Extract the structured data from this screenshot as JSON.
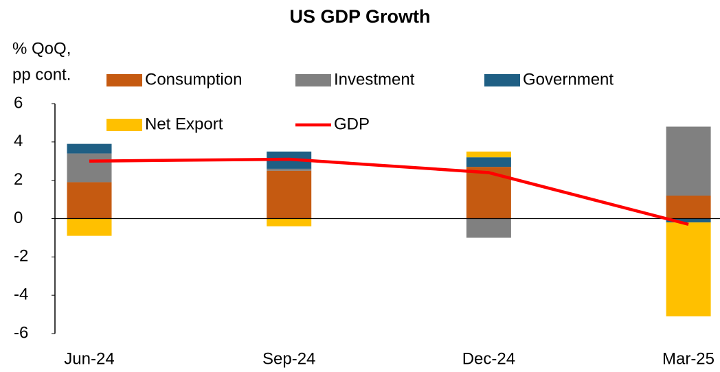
{
  "chart_data": {
    "type": "stacked_bar_line",
    "title": "US GDP Growth",
    "ylabel": [
      "% QoQ,",
      "pp cont."
    ],
    "categories": [
      "Jun-24",
      "Sep-24",
      "Dec-24",
      "Mar-25"
    ],
    "series": [
      {
        "name": "Consumption",
        "color": "#c55a11",
        "type": "bar",
        "values": [
          1.9,
          2.5,
          2.7,
          1.2
        ]
      },
      {
        "name": "Investment",
        "color": "#808080",
        "type": "bar",
        "values": [
          1.5,
          0.1,
          -1.0,
          3.6
        ]
      },
      {
        "name": "Government",
        "color": "#1f5f84",
        "type": "bar",
        "values": [
          0.5,
          0.9,
          0.5,
          -0.2
        ]
      },
      {
        "name": "Net Export",
        "color": "#ffc000",
        "type": "bar",
        "values": [
          -0.9,
          -0.4,
          0.3,
          -4.9
        ]
      },
      {
        "name": "GDP",
        "color": "#ff0000",
        "type": "line",
        "values": [
          3.0,
          3.1,
          2.4,
          -0.3
        ]
      }
    ],
    "ylim": [
      -6,
      6
    ],
    "yticks": [
      -6,
      -4,
      -2,
      0,
      2,
      4,
      6
    ]
  }
}
